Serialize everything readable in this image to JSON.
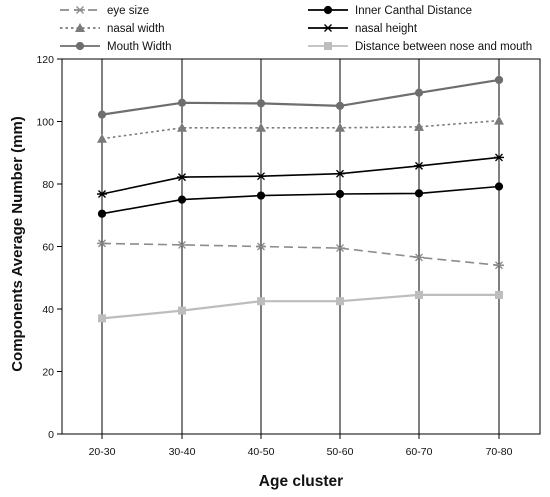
{
  "chart_data": {
    "type": "line",
    "categories": [
      "20-30",
      "30-40",
      "40-50",
      "50-60",
      "60-70",
      "70-80"
    ],
    "xlabel": "Age cluster",
    "ylabel": "Components Average Number (mm)",
    "ylim": [
      0,
      120
    ],
    "yticks": [
      "0",
      "20",
      "40",
      "60",
      "80",
      "100",
      "120"
    ],
    "grid": "vertical lines at each category",
    "legend_position": "top, two columns",
    "series": [
      {
        "name": "eye size",
        "values": [
          61.0,
          60.5,
          60.0,
          59.5,
          56.5,
          54.0
        ],
        "color": "#8c8c8c",
        "line_style": "dashed",
        "marker": "asterisk"
      },
      {
        "name": "Inner Canthal Distance",
        "values": [
          70.5,
          75.0,
          76.3,
          76.8,
          77.0,
          79.2
        ],
        "color": "#000000",
        "line_style": "solid",
        "marker": "circle"
      },
      {
        "name": "nasal width",
        "values": [
          94.5,
          98.0,
          98.0,
          98.0,
          98.3,
          100.3
        ],
        "color": "#7a7a7a",
        "line_style": "dotted",
        "marker": "triangle"
      },
      {
        "name": "nasal height",
        "values": [
          76.8,
          82.2,
          82.5,
          83.3,
          85.8,
          88.5
        ],
        "color": "#000000",
        "line_style": "solid",
        "marker": "asterisk"
      },
      {
        "name": "Mouth Width",
        "values": [
          102.2,
          106.0,
          105.8,
          105.0,
          109.2,
          113.3
        ],
        "color": "#6e6e6e",
        "line_style": "solid",
        "marker": "circle"
      },
      {
        "name": "Distance between nose and mouth",
        "values": [
          37.0,
          39.5,
          42.5,
          42.5,
          44.5,
          44.5
        ],
        "color": "#bdbdbd",
        "line_style": "solid",
        "marker": "square"
      }
    ]
  }
}
